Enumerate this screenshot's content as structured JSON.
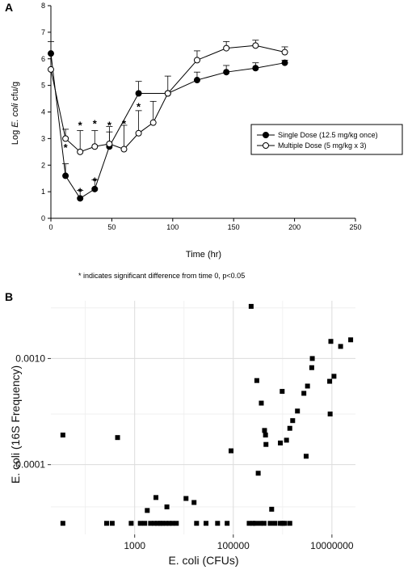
{
  "chart_data": [
    {
      "panel": "A",
      "type": "line",
      "xlabel": "Time (hr)",
      "ylabel_pre": "Log ",
      "ylabel_em": "E. coli",
      "ylabel_post": " cfu/g",
      "xlim": [
        0,
        250
      ],
      "ylim": [
        0,
        8
      ],
      "xticks": [
        0,
        50,
        100,
        150,
        200,
        250
      ],
      "yticks": [
        0,
        1,
        2,
        3,
        4,
        5,
        6,
        7,
        8
      ],
      "legend_position": "right-middle",
      "series": [
        {
          "name": "Single Dose (12.5 mg/kg once)",
          "marker": "filled-circle",
          "x": [
            0,
            12,
            24,
            36,
            48,
            72,
            96,
            120,
            144,
            168,
            192
          ],
          "y": [
            6.2,
            1.6,
            0.75,
            1.1,
            2.7,
            4.7,
            4.7,
            5.2,
            5.5,
            5.65,
            5.85
          ],
          "err": [
            0.45,
            0.45,
            0.3,
            0.35,
            0.55,
            0.45,
            0,
            0.3,
            0.25,
            0.2,
            0.1
          ]
        },
        {
          "name": "Multiple Dose (5 mg/kg x 3)",
          "marker": "open-circle",
          "x": [
            0,
            12,
            24,
            36,
            48,
            60,
            72,
            84,
            96,
            120,
            144,
            168,
            192
          ],
          "y": [
            5.6,
            3.0,
            2.5,
            2.7,
            2.8,
            2.6,
            3.2,
            3.6,
            4.7,
            5.95,
            6.4,
            6.5,
            6.25
          ],
          "err": [
            0,
            0.35,
            0.8,
            0.6,
            0.65,
            0.9,
            0.85,
            0.8,
            0.65,
            0.35,
            0.25,
            0.2,
            0.2
          ]
        }
      ],
      "significance_marks": [
        {
          "x": 12,
          "y": 2.7,
          "text": "*"
        },
        {
          "x": 24,
          "y": 1.05,
          "text": "*"
        },
        {
          "x": 24,
          "y": 3.55,
          "text": "*"
        },
        {
          "x": 36,
          "y": 1.45,
          "text": "*"
        },
        {
          "x": 36,
          "y": 3.6,
          "text": "*"
        },
        {
          "x": 48,
          "y": 3.55,
          "text": "*"
        },
        {
          "x": 60,
          "y": 3.6,
          "text": "*"
        },
        {
          "x": 72,
          "y": 4.25,
          "text": "*"
        }
      ],
      "footnote": "* indicates significant difference from time 0, p<0.05"
    },
    {
      "panel": "B",
      "type": "scatter",
      "xlabel": "E. coli (CFUs)",
      "ylabel": "E. coli (16S Frequency)",
      "x_scale": "log10",
      "y_scale": "log10",
      "xlim": [
        20,
        30000000
      ],
      "ylim": [
        2.2e-05,
        0.0035
      ],
      "xticks": [
        1000,
        100000,
        10000000
      ],
      "xtick_labels": [
        "1000",
        "100000",
        "10000000"
      ],
      "yticks": [
        0.0001,
        0.001
      ],
      "ytick_labels": [
        "0.0001",
        "0.0010"
      ],
      "grid": true,
      "points": [
        [
          35,
          0.00019
        ],
        [
          450,
          0.00018
        ],
        [
          1800,
          3.7e-05
        ],
        [
          2700,
          4.9e-05
        ],
        [
          4500,
          4e-05
        ],
        [
          11000,
          4.8e-05
        ],
        [
          16000,
          4.4e-05
        ],
        [
          90000,
          0.000135
        ],
        [
          230000,
          0.0031
        ],
        [
          300000,
          0.00062
        ],
        [
          320000,
          8.3e-05
        ],
        [
          370000,
          0.00038
        ],
        [
          430000,
          0.00021
        ],
        [
          450000,
          0.00019
        ],
        [
          460000,
          0.000155
        ],
        [
          600000,
          3.8e-05
        ],
        [
          900000,
          0.00016
        ],
        [
          980000,
          0.00049
        ],
        [
          1200000,
          0.00017
        ],
        [
          1400000,
          0.00022
        ],
        [
          1600000,
          0.00026
        ],
        [
          2000000,
          0.00032
        ],
        [
          2700000,
          0.00047
        ],
        [
          3000000,
          0.00012
        ],
        [
          3200000,
          0.00055
        ],
        [
          3900000,
          0.00082
        ],
        [
          4000000,
          0.001
        ],
        [
          9000000,
          0.00061
        ],
        [
          9200000,
          0.0003
        ],
        [
          9500000,
          0.00145
        ],
        [
          11000000,
          0.00068
        ],
        [
          15000000,
          0.0013
        ],
        [
          24000000,
          0.0015
        ]
      ],
      "baseline_points_x": [
        35,
        270,
        350,
        850,
        1300,
        1600,
        2100,
        2500,
        2900,
        3300,
        3700,
        4300,
        5000,
        5800,
        7000,
        18000,
        28000,
        48000,
        75000,
        210000,
        250000,
        280000,
        350000,
        420000,
        560000,
        700000,
        900000,
        1000000,
        1100000,
        1400000
      ],
      "baseline_y": 2.8e-05
    }
  ],
  "labels": {
    "panelA": "A",
    "panelB": "B"
  }
}
